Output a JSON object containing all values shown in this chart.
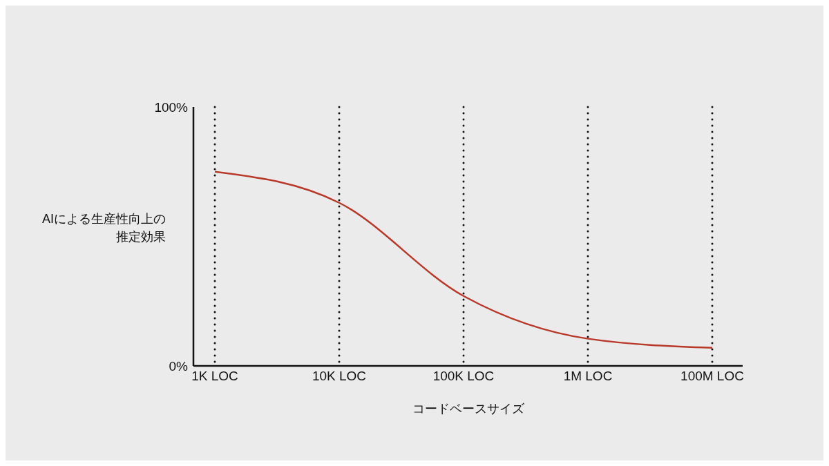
{
  "chart_data": {
    "type": "line",
    "xlabel": "コードベースサイズ",
    "ylabel": "AIによる生産性向上の推定効果",
    "categories": [
      "1K LOC",
      "10K LOC",
      "100K LOC",
      "1M LOC",
      "100M LOC"
    ],
    "series": [
      {
        "color": "#b8392a",
        "values": [
          75,
          63,
          27,
          10.5,
          7
        ]
      }
    ],
    "ylim": [
      0,
      100
    ],
    "yticks": [
      {
        "value": 0,
        "label": "0%"
      },
      {
        "value": 100,
        "label": "100%"
      }
    ],
    "grid": "x",
    "legend": false,
    "marker": "none",
    "line_style": "solid"
  }
}
